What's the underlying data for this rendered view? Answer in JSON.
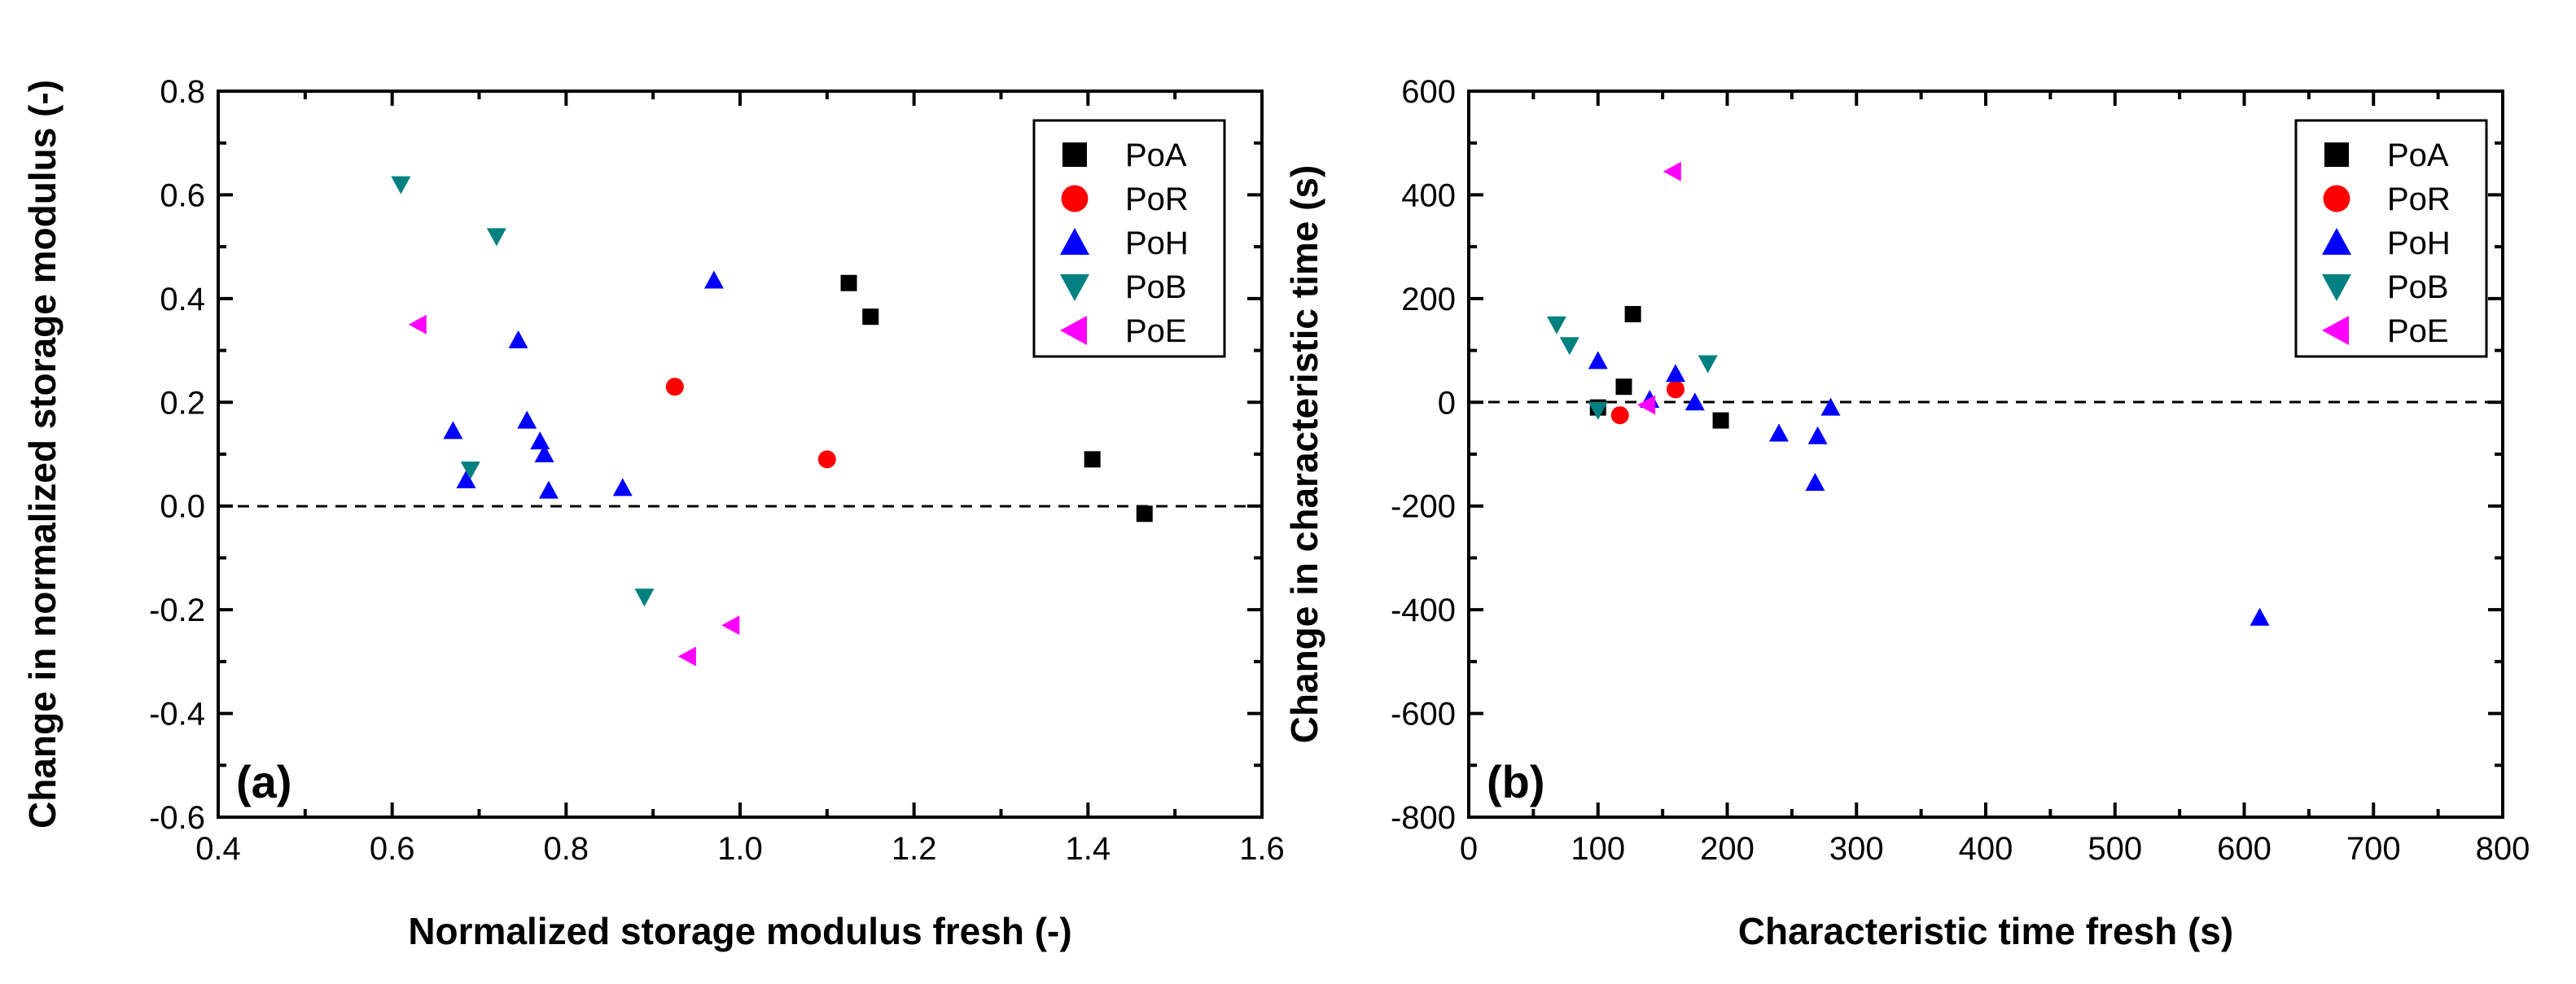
{
  "chart_data": [
    {
      "type": "scatter",
      "panel_label": "(a)",
      "xlabel": "Normalized storage modulus fresh (-)",
      "ylabel": "Change in normalized storage modulus (-)",
      "xlim": [
        0.4,
        1.6
      ],
      "ylim": [
        -0.6,
        0.8
      ],
      "xticks": [
        "0.4",
        "0.6",
        "0.8",
        "1.0",
        "1.2",
        "1.4",
        "1.6"
      ],
      "yticks": [
        "-0.6",
        "-0.4",
        "-0.2",
        "0.0",
        "0.2",
        "0.4",
        "0.6",
        "0.8"
      ],
      "reference_line_y": 0.0,
      "legend_position": "top-right",
      "series": [
        {
          "name": "PoA",
          "marker": "square",
          "color": "#000000",
          "points": [
            [
              1.125,
              0.43
            ],
            [
              1.15,
              0.365
            ],
            [
              1.405,
              0.09
            ],
            [
              1.465,
              -0.015
            ]
          ]
        },
        {
          "name": "PoR",
          "marker": "circle",
          "color": "#ff0000",
          "points": [
            [
              0.925,
              0.23
            ],
            [
              1.1,
              0.09
            ]
          ]
        },
        {
          "name": "PoH",
          "marker": "triangle-up",
          "color": "#0000ff",
          "points": [
            [
              0.97,
              0.435
            ],
            [
              0.745,
              0.32
            ],
            [
              0.67,
              0.145
            ],
            [
              0.755,
              0.165
            ],
            [
              0.77,
              0.125
            ],
            [
              0.775,
              0.1
            ],
            [
              0.685,
              0.05
            ],
            [
              0.78,
              0.03
            ],
            [
              0.865,
              0.035
            ]
          ]
        },
        {
          "name": "PoB",
          "marker": "triangle-down",
          "color": "#008080",
          "points": [
            [
              0.61,
              0.62
            ],
            [
              0.72,
              0.52
            ],
            [
              0.69,
              0.07
            ],
            [
              0.89,
              -0.175
            ]
          ]
        },
        {
          "name": "PoE",
          "marker": "triangle-left",
          "color": "#ff00ff",
          "points": [
            [
              0.63,
              0.35
            ],
            [
              0.99,
              -0.23
            ],
            [
              0.94,
              -0.29
            ]
          ]
        }
      ]
    },
    {
      "type": "scatter",
      "panel_label": "(b)",
      "xlabel": "Characteristic time fresh (s)",
      "ylabel": "Change in characteristic time (s)",
      "xlim": [
        0,
        800
      ],
      "ylim": [
        -800,
        600
      ],
      "xticks": [
        "0",
        "100",
        "200",
        "300",
        "400",
        "500",
        "600",
        "700",
        "800"
      ],
      "yticks": [
        "-800",
        "-600",
        "-400",
        "-200",
        "0",
        "200",
        "400",
        "600"
      ],
      "reference_line_y": 0,
      "legend_position": "top-right",
      "series": [
        {
          "name": "PoA",
          "marker": "square",
          "color": "#000000",
          "points": [
            [
              127,
              170
            ],
            [
              120,
              30
            ],
            [
              100,
              -10
            ],
            [
              195,
              -35
            ]
          ]
        },
        {
          "name": "PoR",
          "marker": "circle",
          "color": "#ff0000",
          "points": [
            [
              160,
              25
            ],
            [
              117,
              -25
            ]
          ]
        },
        {
          "name": "PoH",
          "marker": "triangle-up",
          "color": "#0000ff",
          "points": [
            [
              100,
              80
            ],
            [
              160,
              55
            ],
            [
              140,
              5
            ],
            [
              175,
              0
            ],
            [
              240,
              -60
            ],
            [
              270,
              -65
            ],
            [
              280,
              -10
            ],
            [
              268,
              -155
            ],
            [
              612,
              -415
            ]
          ]
        },
        {
          "name": "PoB",
          "marker": "triangle-down",
          "color": "#008080",
          "points": [
            [
              68,
              150
            ],
            [
              78,
              110
            ],
            [
              185,
              75
            ],
            [
              100,
              -15
            ]
          ]
        },
        {
          "name": "PoE",
          "marker": "triangle-left",
          "color": "#ff00ff",
          "points": [
            [
              158,
              445
            ],
            [
              138,
              -5
            ]
          ]
        }
      ]
    }
  ]
}
